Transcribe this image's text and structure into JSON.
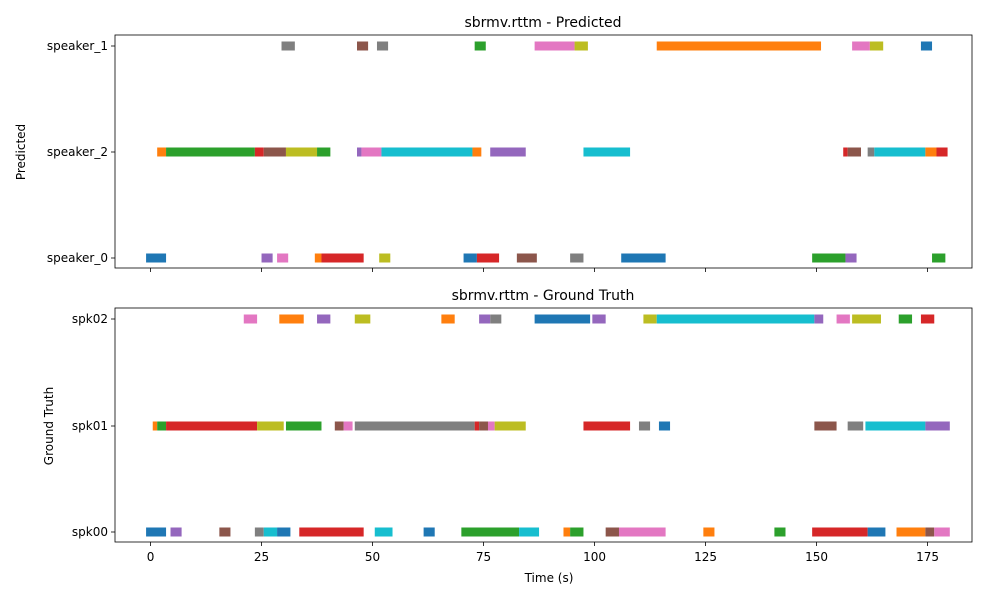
{
  "figure": {
    "xlabel": "Time (s)",
    "x_ticks": [
      0,
      25,
      50,
      75,
      100,
      125,
      150,
      175
    ],
    "xlim": [
      -8,
      185
    ]
  },
  "chart_data": [
    {
      "type": "timeline",
      "title": "sbrmv.rttm - Predicted",
      "xlabel": "",
      "ylabel": "Predicted",
      "speakers": [
        "speaker_0",
        "speaker_2",
        "speaker_1"
      ],
      "x_tick_labels_visible": false,
      "segments": [
        {
          "speaker": "speaker_1",
          "start": 29.5,
          "end": 32.5,
          "color": "#7f7f7f"
        },
        {
          "speaker": "speaker_1",
          "start": 46.5,
          "end": 49.0,
          "color": "#8c564b"
        },
        {
          "speaker": "speaker_1",
          "start": 51.0,
          "end": 53.5,
          "color": "#7f7f7f"
        },
        {
          "speaker": "speaker_1",
          "start": 73.0,
          "end": 75.5,
          "color": "#2ca02c"
        },
        {
          "speaker": "speaker_1",
          "start": 86.5,
          "end": 95.5,
          "color": "#e377c2"
        },
        {
          "speaker": "speaker_1",
          "start": 95.5,
          "end": 98.5,
          "color": "#bcbd22"
        },
        {
          "speaker": "speaker_1",
          "start": 114.0,
          "end": 151.0,
          "color": "#ff7f0e"
        },
        {
          "speaker": "speaker_1",
          "start": 158.0,
          "end": 162.0,
          "color": "#e377c2"
        },
        {
          "speaker": "speaker_1",
          "start": 162.0,
          "end": 165.0,
          "color": "#bcbd22"
        },
        {
          "speaker": "speaker_1",
          "start": 173.5,
          "end": 176.0,
          "color": "#1f77b4"
        },
        {
          "speaker": "speaker_2",
          "start": 1.5,
          "end": 3.5,
          "color": "#ff7f0e"
        },
        {
          "speaker": "speaker_2",
          "start": 3.5,
          "end": 23.5,
          "color": "#2ca02c"
        },
        {
          "speaker": "speaker_2",
          "start": 23.5,
          "end": 25.5,
          "color": "#d62728"
        },
        {
          "speaker": "speaker_2",
          "start": 25.5,
          "end": 30.5,
          "color": "#8c564b"
        },
        {
          "speaker": "speaker_2",
          "start": 30.5,
          "end": 37.5,
          "color": "#bcbd22"
        },
        {
          "speaker": "speaker_2",
          "start": 37.5,
          "end": 40.5,
          "color": "#2ca02c"
        },
        {
          "speaker": "speaker_2",
          "start": 46.5,
          "end": 47.5,
          "color": "#9467bd"
        },
        {
          "speaker": "speaker_2",
          "start": 47.5,
          "end": 52.0,
          "color": "#e377c2"
        },
        {
          "speaker": "speaker_2",
          "start": 52.0,
          "end": 72.5,
          "color": "#17becf"
        },
        {
          "speaker": "speaker_2",
          "start": 72.5,
          "end": 74.5,
          "color": "#ff7f0e"
        },
        {
          "speaker": "speaker_2",
          "start": 76.5,
          "end": 84.5,
          "color": "#9467bd"
        },
        {
          "speaker": "speaker_2",
          "start": 97.5,
          "end": 108.0,
          "color": "#17becf"
        },
        {
          "speaker": "speaker_2",
          "start": 156.0,
          "end": 157.0,
          "color": "#d62728"
        },
        {
          "speaker": "speaker_2",
          "start": 157.0,
          "end": 160.0,
          "color": "#8c564b"
        },
        {
          "speaker": "speaker_2",
          "start": 161.5,
          "end": 163.0,
          "color": "#7f7f7f"
        },
        {
          "speaker": "speaker_2",
          "start": 163.0,
          "end": 174.5,
          "color": "#17becf"
        },
        {
          "speaker": "speaker_2",
          "start": 174.5,
          "end": 177.0,
          "color": "#ff7f0e"
        },
        {
          "speaker": "speaker_2",
          "start": 177.0,
          "end": 179.5,
          "color": "#d62728"
        },
        {
          "speaker": "speaker_0",
          "start": -1.0,
          "end": 3.5,
          "color": "#1f77b4"
        },
        {
          "speaker": "speaker_0",
          "start": 25.0,
          "end": 27.5,
          "color": "#9467bd"
        },
        {
          "speaker": "speaker_0",
          "start": 28.5,
          "end": 31.0,
          "color": "#e377c2"
        },
        {
          "speaker": "speaker_0",
          "start": 37.0,
          "end": 38.5,
          "color": "#ff7f0e"
        },
        {
          "speaker": "speaker_0",
          "start": 38.5,
          "end": 48.0,
          "color": "#d62728"
        },
        {
          "speaker": "speaker_0",
          "start": 51.5,
          "end": 54.0,
          "color": "#bcbd22"
        },
        {
          "speaker": "speaker_0",
          "start": 70.5,
          "end": 73.5,
          "color": "#1f77b4"
        },
        {
          "speaker": "speaker_0",
          "start": 73.5,
          "end": 78.5,
          "color": "#d62728"
        },
        {
          "speaker": "speaker_0",
          "start": 82.5,
          "end": 87.0,
          "color": "#8c564b"
        },
        {
          "speaker": "speaker_0",
          "start": 94.5,
          "end": 97.5,
          "color": "#7f7f7f"
        },
        {
          "speaker": "speaker_0",
          "start": 106.0,
          "end": 116.0,
          "color": "#1f77b4"
        },
        {
          "speaker": "speaker_0",
          "start": 149.0,
          "end": 156.5,
          "color": "#2ca02c"
        },
        {
          "speaker": "speaker_0",
          "start": 156.5,
          "end": 159.0,
          "color": "#9467bd"
        },
        {
          "speaker": "speaker_0",
          "start": 176.0,
          "end": 179.0,
          "color": "#2ca02c"
        }
      ]
    },
    {
      "type": "timeline",
      "title": "sbrmv.rttm - Ground Truth",
      "xlabel": "Time (s)",
      "ylabel": "Ground Truth",
      "speakers": [
        "spk00",
        "spk01",
        "spk02"
      ],
      "x_tick_labels_visible": true,
      "segments": [
        {
          "speaker": "spk02",
          "start": 21.0,
          "end": 24.0,
          "color": "#e377c2"
        },
        {
          "speaker": "spk02",
          "start": 29.0,
          "end": 34.5,
          "color": "#ff7f0e"
        },
        {
          "speaker": "spk02",
          "start": 37.5,
          "end": 40.5,
          "color": "#9467bd"
        },
        {
          "speaker": "spk02",
          "start": 46.0,
          "end": 49.5,
          "color": "#bcbd22"
        },
        {
          "speaker": "spk02",
          "start": 65.5,
          "end": 68.5,
          "color": "#ff7f0e"
        },
        {
          "speaker": "spk02",
          "start": 74.0,
          "end": 76.5,
          "color": "#9467bd"
        },
        {
          "speaker": "spk02",
          "start": 76.5,
          "end": 79.0,
          "color": "#7f7f7f"
        },
        {
          "speaker": "spk02",
          "start": 86.5,
          "end": 99.0,
          "color": "#1f77b4"
        },
        {
          "speaker": "spk02",
          "start": 99.5,
          "end": 102.5,
          "color": "#9467bd"
        },
        {
          "speaker": "spk02",
          "start": 111.0,
          "end": 114.0,
          "color": "#bcbd22"
        },
        {
          "speaker": "spk02",
          "start": 114.0,
          "end": 149.5,
          "color": "#17becf"
        },
        {
          "speaker": "spk02",
          "start": 149.5,
          "end": 151.5,
          "color": "#9467bd"
        },
        {
          "speaker": "spk02",
          "start": 154.5,
          "end": 157.5,
          "color": "#e377c2"
        },
        {
          "speaker": "spk02",
          "start": 158.0,
          "end": 164.5,
          "color": "#bcbd22"
        },
        {
          "speaker": "spk02",
          "start": 168.5,
          "end": 171.5,
          "color": "#2ca02c"
        },
        {
          "speaker": "spk02",
          "start": 173.5,
          "end": 176.5,
          "color": "#d62728"
        },
        {
          "speaker": "spk01",
          "start": 0.5,
          "end": 1.5,
          "color": "#ff7f0e"
        },
        {
          "speaker": "spk01",
          "start": 1.5,
          "end": 3.5,
          "color": "#2ca02c"
        },
        {
          "speaker": "spk01",
          "start": 3.5,
          "end": 24.0,
          "color": "#d62728"
        },
        {
          "speaker": "spk01",
          "start": 24.0,
          "end": 30.0,
          "color": "#bcbd22"
        },
        {
          "speaker": "spk01",
          "start": 30.5,
          "end": 38.5,
          "color": "#2ca02c"
        },
        {
          "speaker": "spk01",
          "start": 41.5,
          "end": 43.5,
          "color": "#8c564b"
        },
        {
          "speaker": "spk01",
          "start": 43.5,
          "end": 45.5,
          "color": "#e377c2"
        },
        {
          "speaker": "spk01",
          "start": 46.0,
          "end": 73.0,
          "color": "#7f7f7f"
        },
        {
          "speaker": "spk01",
          "start": 73.0,
          "end": 74.0,
          "color": "#d62728"
        },
        {
          "speaker": "spk01",
          "start": 74.0,
          "end": 76.0,
          "color": "#8c564b"
        },
        {
          "speaker": "spk01",
          "start": 76.0,
          "end": 77.5,
          "color": "#e377c2"
        },
        {
          "speaker": "spk01",
          "start": 77.5,
          "end": 84.5,
          "color": "#bcbd22"
        },
        {
          "speaker": "spk01",
          "start": 97.5,
          "end": 108.0,
          "color": "#d62728"
        },
        {
          "speaker": "spk01",
          "start": 110.0,
          "end": 112.5,
          "color": "#7f7f7f"
        },
        {
          "speaker": "spk01",
          "start": 114.5,
          "end": 117.0,
          "color": "#1f77b4"
        },
        {
          "speaker": "spk01",
          "start": 149.5,
          "end": 154.5,
          "color": "#8c564b"
        },
        {
          "speaker": "spk01",
          "start": 157.0,
          "end": 160.5,
          "color": "#7f7f7f"
        },
        {
          "speaker": "spk01",
          "start": 161.0,
          "end": 174.5,
          "color": "#17becf"
        },
        {
          "speaker": "spk01",
          "start": 174.5,
          "end": 180.0,
          "color": "#9467bd"
        },
        {
          "speaker": "spk00",
          "start": -1.0,
          "end": 3.5,
          "color": "#1f77b4"
        },
        {
          "speaker": "spk00",
          "start": 4.5,
          "end": 7.0,
          "color": "#9467bd"
        },
        {
          "speaker": "spk00",
          "start": 15.5,
          "end": 18.0,
          "color": "#8c564b"
        },
        {
          "speaker": "spk00",
          "start": 23.5,
          "end": 25.5,
          "color": "#7f7f7f"
        },
        {
          "speaker": "spk00",
          "start": 25.5,
          "end": 28.5,
          "color": "#17becf"
        },
        {
          "speaker": "spk00",
          "start": 28.5,
          "end": 31.5,
          "color": "#1f77b4"
        },
        {
          "speaker": "spk00",
          "start": 33.5,
          "end": 48.0,
          "color": "#d62728"
        },
        {
          "speaker": "spk00",
          "start": 50.5,
          "end": 54.5,
          "color": "#17becf"
        },
        {
          "speaker": "spk00",
          "start": 61.5,
          "end": 64.0,
          "color": "#1f77b4"
        },
        {
          "speaker": "spk00",
          "start": 70.0,
          "end": 83.0,
          "color": "#2ca02c"
        },
        {
          "speaker": "spk00",
          "start": 83.0,
          "end": 87.5,
          "color": "#17becf"
        },
        {
          "speaker": "spk00",
          "start": 93.0,
          "end": 94.5,
          "color": "#ff7f0e"
        },
        {
          "speaker": "spk00",
          "start": 94.5,
          "end": 97.5,
          "color": "#2ca02c"
        },
        {
          "speaker": "spk00",
          "start": 102.5,
          "end": 105.5,
          "color": "#8c564b"
        },
        {
          "speaker": "spk00",
          "start": 105.5,
          "end": 116.0,
          "color": "#e377c2"
        },
        {
          "speaker": "spk00",
          "start": 124.5,
          "end": 127.0,
          "color": "#ff7f0e"
        },
        {
          "speaker": "spk00",
          "start": 140.5,
          "end": 143.0,
          "color": "#2ca02c"
        },
        {
          "speaker": "spk00",
          "start": 149.0,
          "end": 161.5,
          "color": "#d62728"
        },
        {
          "speaker": "spk00",
          "start": 161.5,
          "end": 165.5,
          "color": "#1f77b4"
        },
        {
          "speaker": "spk00",
          "start": 168.0,
          "end": 174.5,
          "color": "#ff7f0e"
        },
        {
          "speaker": "spk00",
          "start": 174.5,
          "end": 176.5,
          "color": "#8c564b"
        },
        {
          "speaker": "spk00",
          "start": 176.5,
          "end": 180.0,
          "color": "#e377c2"
        }
      ]
    }
  ]
}
